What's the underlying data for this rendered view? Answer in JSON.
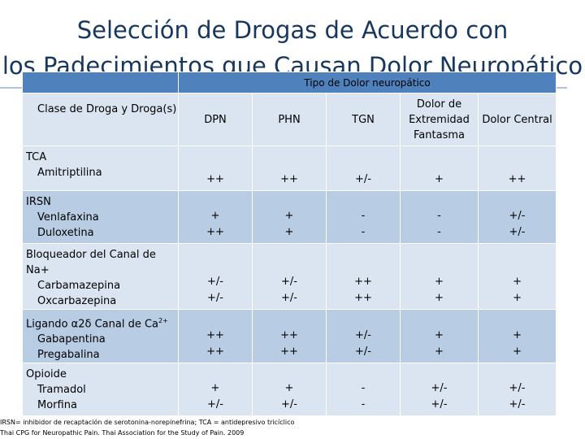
{
  "slide": {
    "title_line1": "Selección de Drogas de Acuerdo con",
    "title_line2": "los Padecimientos que Causan Dolor Neuropático"
  },
  "table": {
    "group_header": "Tipo de Dolor neuropático",
    "col0_header": "Clase de Droga y Droga(s)",
    "columns": [
      "DPN",
      "PHN",
      "TGN",
      "Dolor de Extremidad Fantasma",
      "Dolor Central"
    ],
    "rows": [
      {
        "class": "TCA",
        "class_sup": "",
        "drugs": [
          "Amitriptilina"
        ],
        "values": [
          [
            "++"
          ],
          [
            "++"
          ],
          [
            "+/-"
          ],
          [
            "+"
          ],
          [
            "++"
          ]
        ]
      },
      {
        "class": "IRSN",
        "class_sup": "",
        "drugs": [
          "Venlafaxina",
          "Duloxetina"
        ],
        "values": [
          [
            "+",
            "++"
          ],
          [
            "+",
            "+"
          ],
          [
            "-",
            "-"
          ],
          [
            "-",
            "-"
          ],
          [
            "+/-",
            "+/-"
          ]
        ]
      },
      {
        "class": "Bloqueador del Canal de Na+",
        "class_sup": "",
        "drugs": [
          "Carbamazepina",
          "Oxcarbazepina"
        ],
        "values": [
          [
            "+/-",
            "+/-"
          ],
          [
            "+/-",
            "+/-"
          ],
          [
            "++",
            "++"
          ],
          [
            "+",
            "+"
          ],
          [
            "+",
            "+"
          ]
        ]
      },
      {
        "class": "Ligando α2δ  Canal de Ca",
        "class_sup": "2+",
        "drugs": [
          "Gabapentina",
          "Pregabalina"
        ],
        "values": [
          [
            "++",
            "++"
          ],
          [
            "++",
            "++"
          ],
          [
            "+/-",
            "+/-"
          ],
          [
            "+",
            "+"
          ],
          [
            "+",
            "+"
          ]
        ]
      },
      {
        "class": "Opioide",
        "class_sup": "",
        "drugs": [
          "Tramadol",
          "Morfina"
        ],
        "values": [
          [
            "+",
            "+/-"
          ],
          [
            "+",
            "+/-"
          ],
          [
            "-",
            "-"
          ],
          [
            "+/-",
            "+/-"
          ],
          [
            "+/-",
            "+/-"
          ]
        ]
      }
    ]
  },
  "footnotes": {
    "line1": "IRSN= inhibidor de recaptación de serotonina-norepinefrina; TCA = antidepresivo tricíclico",
    "line2": "Thai CPG for Neuropathic Pain. Thai Association for the Study of Pain. 2009"
  }
}
